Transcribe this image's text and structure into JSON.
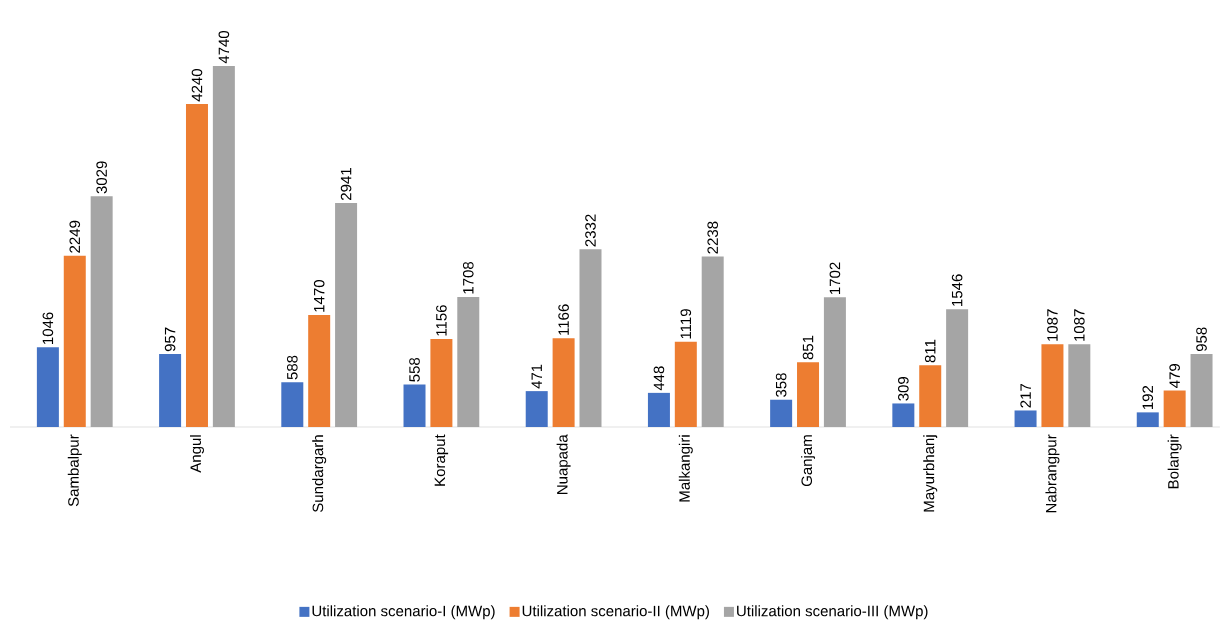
{
  "chart_data": {
    "type": "bar",
    "categories": [
      "Sambalpur",
      "Angul",
      "Sundargarh",
      "Koraput",
      "Nuapada",
      "Malkangiri",
      "Ganjam",
      "Mayurbhanj",
      "Nabrangpur",
      "Bolangir"
    ],
    "series": [
      {
        "name": "Utilization scenario-I (MWp)",
        "color": "#4472c4",
        "values": [
          1046,
          957,
          588,
          558,
          471,
          448,
          358,
          309,
          217,
          192
        ]
      },
      {
        "name": "Utilization scenario-II (MWp)",
        "color": "#ed7d31",
        "values": [
          2249,
          4240,
          1470,
          1156,
          1166,
          1119,
          851,
          811,
          1087,
          479
        ]
      },
      {
        "name": "Utilization scenario-III (MWp)",
        "color": "#a5a5a5",
        "values": [
          3029,
          4740,
          2941,
          1708,
          2332,
          2238,
          1702,
          1546,
          1087,
          958
        ]
      }
    ],
    "data_labels": true,
    "legend": "bottom"
  }
}
